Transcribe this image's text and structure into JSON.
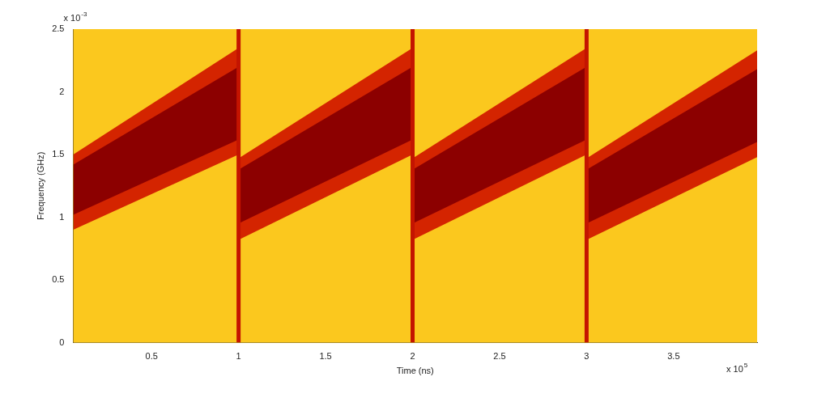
{
  "chart_data": {
    "type": "spectrogram",
    "x_label": "Time (ns)",
    "y_label": "Frequency (GHz)",
    "x_exponent_label": {
      "text": "x 10",
      "exponent": "5"
    },
    "y_exponent_label": {
      "text": "x 10",
      "exponent": "-3"
    },
    "xlim": [
      0.05,
      3.98
    ],
    "xticks": [
      0.5,
      1,
      1.5,
      2,
      2.5,
      3,
      3.5
    ],
    "ylim": [
      0,
      2.5
    ],
    "yticks": [
      0,
      0.5,
      1,
      1.5,
      2,
      2.5
    ],
    "grid": false,
    "series": [
      {
        "type": "band",
        "color": "#d42400",
        "segments": [
          {
            "x": [
              0.05,
              1
            ],
            "low": [
              0.9,
              1.5
            ],
            "high": [
              1.5,
              2.35
            ]
          },
          {
            "x": [
              1,
              2
            ],
            "low": [
              0.82,
              1.5
            ],
            "high": [
              1.47,
              2.35
            ]
          },
          {
            "x": [
              2,
              3
            ],
            "low": [
              0.82,
              1.5
            ],
            "high": [
              1.47,
              2.35
            ]
          },
          {
            "x": [
              3,
              3.98
            ],
            "low": [
              0.82,
              1.48
            ],
            "high": [
              1.47,
              2.33
            ]
          }
        ]
      },
      {
        "type": "band",
        "color": "#8c0000",
        "segments": [
          {
            "x": [
              0.05,
              1
            ],
            "low": [
              1.02,
              1.62
            ],
            "high": [
              1.42,
              2.2
            ]
          },
          {
            "x": [
              1,
              2
            ],
            "low": [
              0.95,
              1.62
            ],
            "high": [
              1.38,
              2.2
            ]
          },
          {
            "x": [
              2,
              3
            ],
            "low": [
              0.95,
              1.62
            ],
            "high": [
              1.38,
              2.2
            ]
          },
          {
            "x": [
              3,
              3.98
            ],
            "low": [
              0.95,
              1.6
            ],
            "high": [
              1.38,
              2.18
            ]
          }
        ]
      },
      {
        "type": "impulse",
        "color": "#c41400",
        "x": [
          1,
          2,
          3
        ]
      }
    ]
  }
}
